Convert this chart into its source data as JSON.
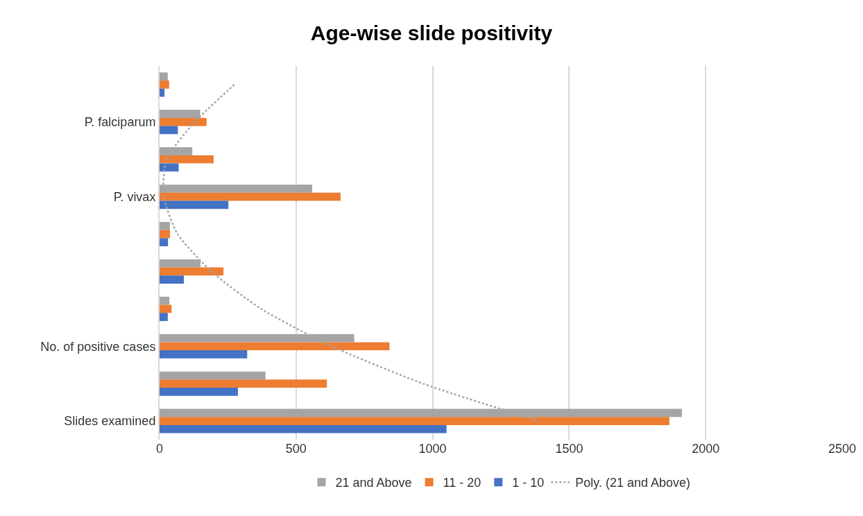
{
  "chart_data": {
    "type": "bar",
    "orientation": "horizontal",
    "title": "Age-wise slide positivity",
    "categories": [
      null,
      "P. falciparum",
      null,
      "P. vivax",
      null,
      null,
      null,
      "No. of positive cases",
      null,
      "Slides examined"
    ],
    "series": [
      {
        "name": "21 and Above",
        "color": "#a5a5a5",
        "values": [
          30,
          149,
          120,
          559,
          38,
          150,
          36,
          713,
          388,
          1913
        ]
      },
      {
        "name": "11 - 20",
        "color": "#ed7d31",
        "values": [
          35,
          172,
          198,
          663,
          38,
          234,
          44,
          842,
          613,
          1867
        ]
      },
      {
        "name": "1 - 10",
        "color": "#4472c4",
        "values": [
          18,
          67,
          70,
          252,
          31,
          89,
          30,
          321,
          287,
          1051
        ]
      },
      {
        "name": "Poly. (21 and Above)",
        "type": "line",
        "color": "#a5a5a5",
        "line_style": "dotted",
        "marker": "none",
        "values": [
          274,
          129,
          25,
          15,
          66,
          190,
          372,
          630,
          965,
          1390
        ]
      }
    ],
    "xlim": [
      0,
      2500
    ],
    "xticks": [
      0,
      500,
      1000,
      1500,
      2000,
      2500
    ],
    "grid": "x",
    "legend": "bottom"
  }
}
